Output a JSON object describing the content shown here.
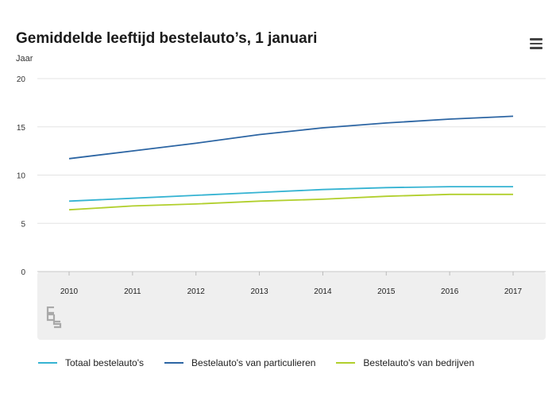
{
  "chart_data": {
    "type": "line",
    "title": "Gemiddelde leeftijd bestelauto’s, 1 januari",
    "ylabel": "Jaar",
    "xlabel": "",
    "x": [
      "2010",
      "2011",
      "2012",
      "2013",
      "2014",
      "2015",
      "2016",
      "2017"
    ],
    "ylim": [
      0,
      20
    ],
    "yticks": [
      "0",
      "5",
      "10",
      "15",
      "20"
    ],
    "grid": "horizontal",
    "legend_position": "bottom",
    "series": [
      {
        "name": "Totaal bestelauto's",
        "color": "#35b3d2",
        "values": [
          7.3,
          7.6,
          7.9,
          8.2,
          8.5,
          8.7,
          8.8,
          8.8
        ]
      },
      {
        "name": "Bestelauto's van particulieren",
        "color": "#2c65a3",
        "values": [
          11.7,
          12.5,
          13.3,
          14.2,
          14.9,
          15.4,
          15.8,
          16.1
        ]
      },
      {
        "name": "Bestelauto's van bedrijven",
        "color": "#b1cf2c",
        "values": [
          6.4,
          6.8,
          7.0,
          7.3,
          7.5,
          7.8,
          8.0,
          8.0
        ]
      }
    ]
  },
  "menu": {
    "icon": "hamburger-menu-icon"
  },
  "logo": {
    "icon": "cbs-logo-icon"
  }
}
